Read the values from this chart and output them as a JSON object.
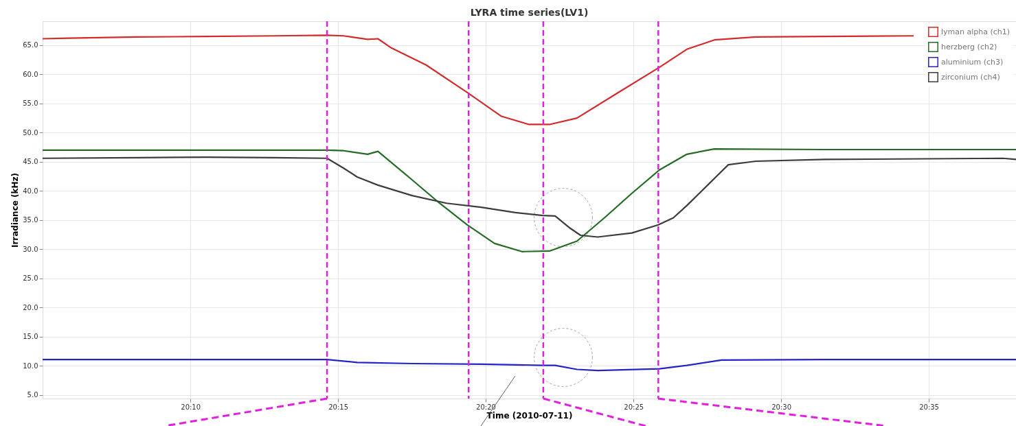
{
  "chart_data": {
    "type": "line",
    "title": "LYRA time series(LV1)",
    "xlabel": "Time (2010-07-11)",
    "ylabel": "Irradiance (kHz)",
    "xlim": [
      20.0833,
      20.6325
    ],
    "ylim": [
      4.4,
      69.1
    ],
    "xticks": [
      {
        "value": 20.1667,
        "label": "20:10"
      },
      {
        "value": 20.25,
        "label": "20:15"
      },
      {
        "value": 20.3333,
        "label": "20:20"
      },
      {
        "value": 20.4167,
        "label": "20:25"
      },
      {
        "value": 20.5,
        "label": "20:30"
      },
      {
        "value": 20.5833,
        "label": "20:35"
      }
    ],
    "yticks": [
      {
        "value": 5,
        "label": "5.0"
      },
      {
        "value": 10,
        "label": "10.0"
      },
      {
        "value": 15,
        "label": "15.0"
      },
      {
        "value": 20,
        "label": "20.0"
      },
      {
        "value": 25,
        "label": "25.0"
      },
      {
        "value": 30,
        "label": "30.0"
      },
      {
        "value": 35,
        "label": "35.0"
      },
      {
        "value": 40,
        "label": "40.0"
      },
      {
        "value": 45,
        "label": "45.0"
      },
      {
        "value": 50,
        "label": "50.0"
      },
      {
        "value": 55,
        "label": "55.0"
      },
      {
        "value": 60,
        "label": "60.0"
      },
      {
        "value": 65,
        "label": "65.0"
      }
    ],
    "grid": true,
    "legend": "top right",
    "marker": "none",
    "line_style": "solid",
    "series": [
      {
        "name": "lyman alpha (ch1)",
        "color": "#d42a2a",
        "x": [
          20.0833,
          20.098,
          20.1368,
          20.1755,
          20.2143,
          20.2438,
          20.2532,
          20.2667,
          20.2725,
          20.2802,
          20.2997,
          20.3228,
          20.3422,
          20.3578,
          20.3693,
          20.3848,
          20.4082,
          20.4313,
          20.4468,
          20.4623,
          20.4857,
          20.5245,
          20.5748
        ],
        "values": [
          66.1,
          66.2,
          66.4,
          66.5,
          66.6,
          66.7,
          66.6,
          66.0,
          66.1,
          64.5,
          61.6,
          56.9,
          52.8,
          51.4,
          51.4,
          52.5,
          56.9,
          61.2,
          64.3,
          65.9,
          66.4,
          66.5,
          66.6
        ]
      },
      {
        "name": "herzberg (ch2)",
        "color": "#236b23",
        "x": [
          20.0833,
          20.1368,
          20.2143,
          20.2438,
          20.2532,
          20.2667,
          20.2725,
          20.2918,
          20.3073,
          20.3228,
          20.3383,
          20.3538,
          20.3693,
          20.3848,
          20.4003,
          20.4158,
          20.4313,
          20.4468,
          20.4623,
          20.5245,
          20.6325
        ],
        "values": [
          47.0,
          47.0,
          47.0,
          47.0,
          46.9,
          46.3,
          46.8,
          41.9,
          37.9,
          34.2,
          31.0,
          29.6,
          29.7,
          31.4,
          35.4,
          39.6,
          43.6,
          46.3,
          47.2,
          47.1,
          47.1
        ]
      },
      {
        "name": "aluminium (ch3)",
        "color": "#2323c8",
        "x": [
          20.0833,
          20.1755,
          20.2438,
          20.2608,
          20.2918,
          20.3307,
          20.3655,
          20.3725,
          20.3848,
          20.3965,
          20.4313,
          20.4468,
          20.4663,
          20.5245,
          20.6325
        ],
        "values": [
          11.1,
          11.1,
          11.1,
          10.6,
          10.4,
          10.3,
          10.1,
          10.1,
          9.4,
          9.2,
          9.5,
          10.1,
          11.0,
          11.1,
          11.1
        ]
      },
      {
        "name": "zirconium (ch4)",
        "color": "#3c3c3c",
        "x": [
          20.0833,
          20.1368,
          20.1755,
          20.2143,
          20.2438,
          20.2532,
          20.2608,
          20.2725,
          20.2918,
          20.3112,
          20.3307,
          20.35,
          20.3655,
          20.3725,
          20.381,
          20.3868,
          20.3965,
          20.4158,
          20.4307,
          20.4392,
          20.4468,
          20.4585,
          20.4702,
          20.4857,
          20.5245,
          20.6252,
          20.6325
        ],
        "values": [
          45.6,
          45.7,
          45.8,
          45.7,
          45.6,
          43.9,
          42.4,
          41.0,
          39.2,
          37.9,
          37.2,
          36.3,
          35.8,
          35.7,
          33.6,
          32.4,
          32.1,
          32.8,
          34.2,
          35.4,
          37.5,
          41.0,
          44.5,
          45.1,
          45.4,
          45.6,
          45.4
        ]
      }
    ],
    "ref_lines": [
      {
        "axis": "x",
        "value": 20.2438,
        "color": "#e020e0",
        "line_style": "dashed"
      },
      {
        "axis": "x",
        "value": 20.3237,
        "color": "#e020e0",
        "line_style": "dashed"
      },
      {
        "axis": "x",
        "value": 20.3658,
        "color": "#e020e0",
        "line_style": "dashed"
      },
      {
        "axis": "x",
        "value": 20.4307,
        "color": "#e020e0",
        "line_style": "dashed"
      }
    ]
  }
}
